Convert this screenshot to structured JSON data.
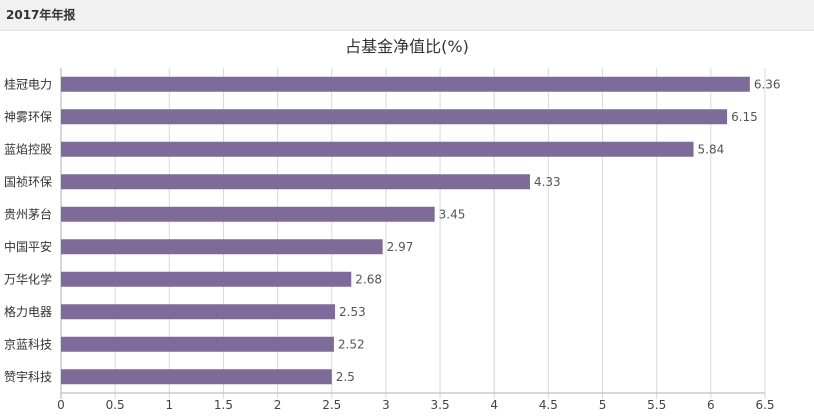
{
  "header": {
    "title": "2017年年报"
  },
  "colors": {
    "bar": "#7f6b9a",
    "grid": "#d9d9d9",
    "axis": "#b0b0b0"
  },
  "chart_data": {
    "type": "bar",
    "orientation": "horizontal",
    "title": "占基金净值比(%)",
    "categories": [
      "桂冠电力",
      "神雾环保",
      "蓝焰控股",
      "国祯环保",
      "贵州茅台",
      "中国平安",
      "万华化学",
      "格力电器",
      "京蓝科技",
      "赞宇科技"
    ],
    "values": [
      6.36,
      6.15,
      5.84,
      4.33,
      3.45,
      2.97,
      2.68,
      2.53,
      2.52,
      2.5
    ],
    "value_labels": [
      "6.36",
      "6.15",
      "5.84",
      "4.33",
      "3.45",
      "2.97",
      "2.68",
      "2.53",
      "2.52",
      "2.5"
    ],
    "xlim": [
      0,
      6.5
    ],
    "xticks": [
      "0",
      "0.5",
      "1",
      "1.5",
      "2",
      "2.5",
      "3",
      "3.5",
      "4",
      "4.5",
      "5",
      "5.5",
      "6",
      "6.5"
    ],
    "grid": true,
    "legend": "none"
  }
}
